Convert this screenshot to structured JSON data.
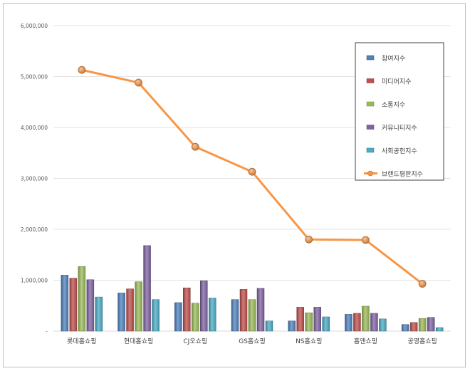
{
  "chart_data": {
    "type": "bar",
    "title": "",
    "xlabel": "",
    "ylabel": "",
    "ylim": [
      0,
      6000000
    ],
    "yticks": [
      "-",
      "1,000,000",
      "2,000,000",
      "3,000,000",
      "4,000,000",
      "5,000,000",
      "6,000,000"
    ],
    "grid": true,
    "legend_position": "top-right",
    "categories": [
      "롯데홈쇼핑",
      "현대홈쇼핑",
      "CJ오쇼핑",
      "GS홈쇼핑",
      "NS홈쇼핑",
      "홈앤쇼핑",
      "공영홈쇼핑"
    ],
    "series": [
      {
        "name": "참여지수",
        "kind": "bar",
        "color": "#4f81bd",
        "values": [
          1100000,
          750000,
          560000,
          620000,
          200000,
          330000,
          130000
        ]
      },
      {
        "name": "미디어지수",
        "kind": "bar",
        "color": "#c0504d",
        "values": [
          1040000,
          830000,
          850000,
          820000,
          470000,
          350000,
          170000
        ]
      },
      {
        "name": "소통지수",
        "kind": "bar",
        "color": "#9bbb59",
        "values": [
          1270000,
          970000,
          550000,
          620000,
          360000,
          490000,
          250000
        ]
      },
      {
        "name": "커뮤니티지수",
        "kind": "bar",
        "color": "#8064a2",
        "values": [
          1010000,
          1680000,
          990000,
          840000,
          470000,
          350000,
          270000
        ]
      },
      {
        "name": "사회공헌지수",
        "kind": "bar",
        "color": "#4bacc6",
        "values": [
          670000,
          620000,
          650000,
          200000,
          280000,
          240000,
          70000
        ]
      },
      {
        "name": "브랜드평판지수",
        "kind": "line",
        "color": "#f79646",
        "values": [
          5130000,
          4880000,
          3620000,
          3130000,
          1800000,
          1790000,
          930000
        ]
      }
    ]
  }
}
